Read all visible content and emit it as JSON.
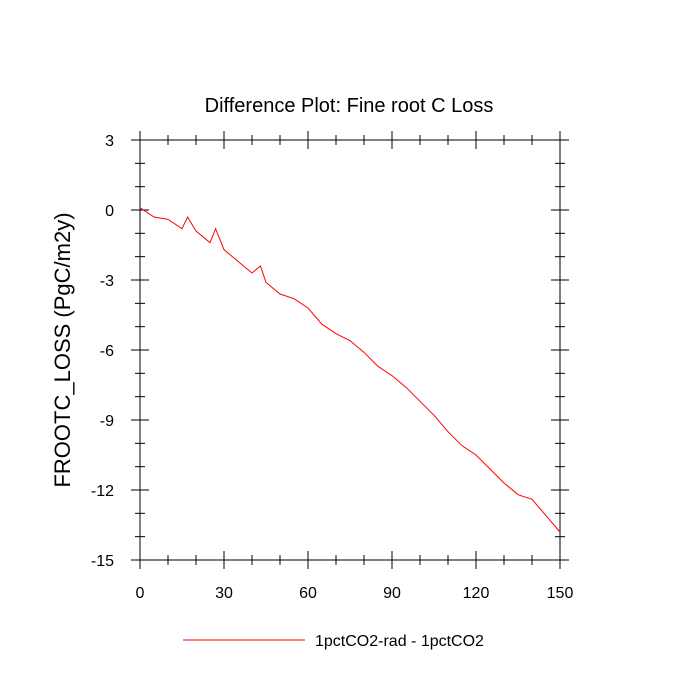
{
  "chart_data": {
    "type": "line",
    "title": "Difference Plot: Fine root C Loss",
    "xlabel": "",
    "ylabel": "FROOTC_LOSS  (PgC/m2y)",
    "xlim": [
      0,
      150
    ],
    "ylim": [
      -15,
      3
    ],
    "xticks": [
      0,
      30,
      60,
      90,
      120,
      150
    ],
    "xtick_labels": [
      "0",
      "30",
      "60",
      "90",
      "120",
      "150"
    ],
    "yticks": [
      3,
      0,
      -3,
      -6,
      -9,
      -12,
      -15
    ],
    "ytick_labels": [
      "3",
      "0",
      "-3",
      "-6",
      "-9",
      "-12",
      "-15"
    ],
    "grid": false,
    "legend_position": "bottom-center",
    "series": [
      {
        "name": "1pctCO2-rad - 1pctCO2",
        "color": "#ff0000",
        "x": [
          0,
          5,
          10,
          15,
          17,
          20,
          25,
          27,
          30,
          35,
          40,
          43,
          45,
          50,
          55,
          60,
          65,
          70,
          75,
          80,
          85,
          90,
          95,
          100,
          105,
          110,
          115,
          120,
          125,
          130,
          135,
          140,
          145,
          150
        ],
        "y": [
          0.1,
          -0.3,
          -0.4,
          -0.8,
          -0.3,
          -0.9,
          -1.4,
          -0.8,
          -1.7,
          -2.2,
          -2.7,
          -2.4,
          -3.1,
          -3.6,
          -3.8,
          -4.2,
          -4.9,
          -5.3,
          -5.6,
          -6.1,
          -6.7,
          -7.1,
          -7.6,
          -8.2,
          -8.8,
          -9.5,
          -10.1,
          -10.5,
          -11.1,
          -11.7,
          -12.2,
          -12.4,
          -13.1,
          -13.8
        ]
      }
    ]
  }
}
